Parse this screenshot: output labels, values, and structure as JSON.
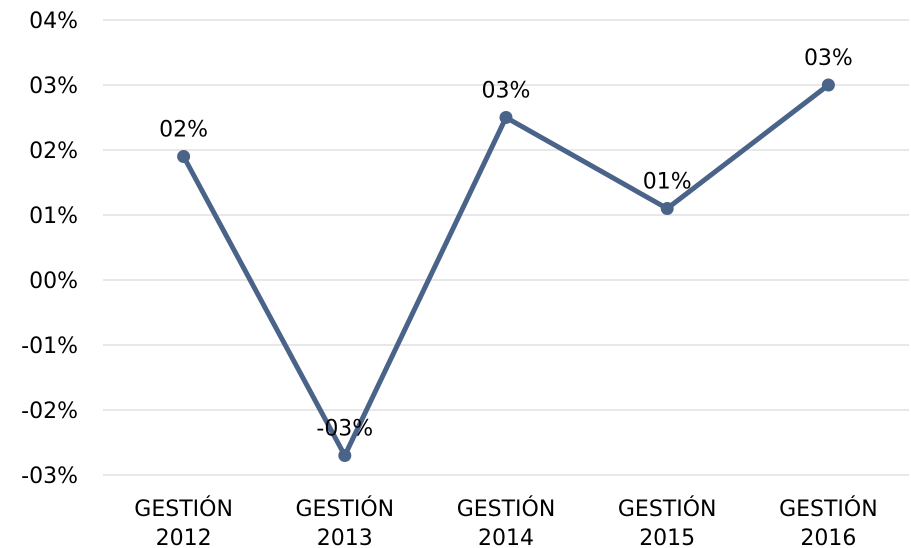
{
  "chart_data": {
    "type": "line",
    "title": "",
    "xlabel": "",
    "ylabel": "",
    "categories": [
      [
        "GESTIÓN",
        "2012"
      ],
      [
        "GESTIÓN",
        "2013"
      ],
      [
        "GESTIÓN",
        "2014"
      ],
      [
        "GESTIÓN",
        "2015"
      ],
      [
        "GESTIÓN",
        "2016"
      ]
    ],
    "series": [
      {
        "values": [
          0.019,
          -0.027,
          0.025,
          0.011,
          0.03
        ],
        "data_labels": [
          "02%",
          "-03%",
          "03%",
          "01%",
          "03%"
        ],
        "color": "#4a6389"
      }
    ],
    "ylim": [
      -0.03,
      0.04
    ],
    "ytick_values": [
      0.04,
      0.03,
      0.02,
      0.01,
      0.0,
      -0.01,
      -0.02,
      -0.03
    ],
    "ytick_labels": [
      "04%",
      "03%",
      "02%",
      "01%",
      "00%",
      "-01%",
      "-02%",
      "-03%"
    ],
    "grid": true,
    "gridline_color": "#d9d9d9",
    "legend": "none"
  }
}
